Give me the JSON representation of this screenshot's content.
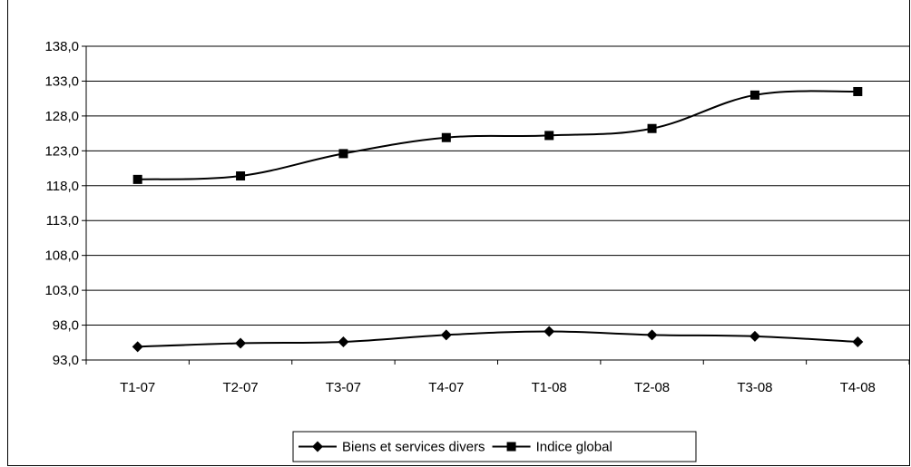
{
  "chart_data": {
    "type": "line",
    "title": "",
    "xlabel": "",
    "ylabel": "",
    "categories": [
      "T1-07",
      "T2-07",
      "T3-07",
      "T4-07",
      "T1-08",
      "T2-08",
      "T3-08",
      "T4-08"
    ],
    "y_ticks": [
      "93,0",
      "98,0",
      "103,0",
      "108,0",
      "113,0",
      "118,0",
      "123,0",
      "128,0",
      "133,0",
      "138,0"
    ],
    "ylim": [
      93,
      138
    ],
    "grid": "horizontal",
    "legend_position": "bottom",
    "series": [
      {
        "name": "Biens et services divers",
        "marker": "diamond",
        "color": "#000000",
        "values": [
          94.9,
          95.4,
          95.6,
          96.6,
          97.1,
          96.6,
          96.4,
          95.6
        ]
      },
      {
        "name": "Indice global",
        "marker": "square",
        "color": "#000000",
        "values": [
          118.9,
          119.4,
          122.6,
          124.9,
          125.2,
          126.2,
          131.0,
          131.5
        ]
      }
    ]
  }
}
